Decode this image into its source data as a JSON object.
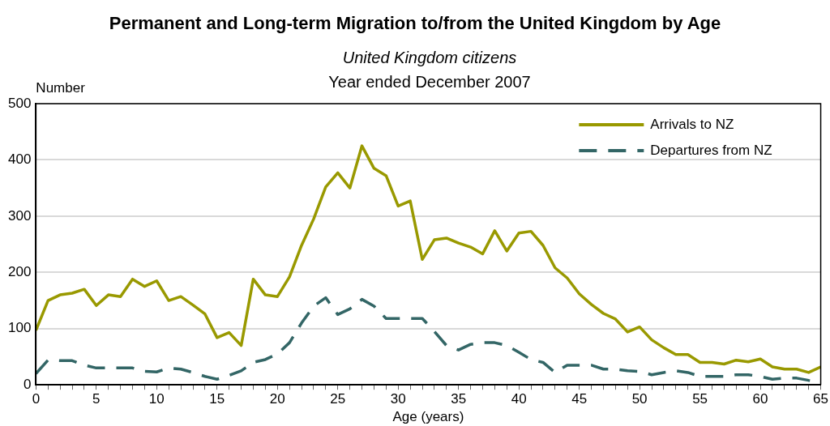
{
  "chart_data": {
    "type": "line",
    "title": "Permanent and Long-term Migration to/from the United Kingdom by Age",
    "subtitle": "United Kingdom citizens",
    "annotations": [
      "Year ended December 2007"
    ],
    "xlabel": "Age (years)",
    "ylabel": "Number",
    "x": [
      0,
      1,
      2,
      3,
      4,
      5,
      6,
      7,
      8,
      9,
      10,
      11,
      12,
      13,
      14,
      15,
      16,
      17,
      18,
      19,
      20,
      21,
      22,
      23,
      24,
      25,
      26,
      27,
      28,
      29,
      30,
      31,
      32,
      33,
      34,
      35,
      36,
      37,
      38,
      39,
      40,
      41,
      42,
      43,
      44,
      45,
      46,
      47,
      48,
      49,
      50,
      51,
      52,
      53,
      54,
      55,
      56,
      57,
      58,
      59,
      60,
      61,
      62,
      63,
      64,
      65
    ],
    "series": [
      {
        "name": "Arrivals to NZ",
        "color": "#999900",
        "line_style": "solid",
        "values": [
          97,
          150,
          160,
          163,
          170,
          141,
          160,
          157,
          188,
          175,
          185,
          150,
          157,
          142,
          126,
          84,
          93,
          70,
          188,
          160,
          157,
          192,
          248,
          295,
          352,
          377,
          350,
          425,
          385,
          372,
          318,
          327,
          223,
          258,
          261,
          252,
          245,
          233,
          274,
          238,
          270,
          273,
          248,
          208,
          190,
          162,
          143,
          127,
          117,
          94,
          103,
          80,
          66,
          54,
          54,
          40,
          40,
          37,
          44,
          41,
          46,
          32,
          28,
          28,
          22,
          32
        ]
      },
      {
        "name": "Departures from NZ",
        "color": "#336666",
        "line_style": "dashed",
        "values": [
          20,
          44,
          43,
          43,
          35,
          30,
          30,
          30,
          30,
          24,
          23,
          30,
          28,
          22,
          15,
          10,
          17,
          25,
          40,
          45,
          55,
          75,
          110,
          140,
          155,
          125,
          135,
          152,
          140,
          118,
          118,
          118,
          118,
          95,
          70,
          62,
          72,
          75,
          75,
          70,
          58,
          45,
          40,
          22,
          35,
          35,
          35,
          28,
          28,
          25,
          24,
          18,
          22,
          25,
          22,
          15,
          15,
          15,
          18,
          18,
          15,
          10,
          12,
          12,
          8,
          5
        ]
      }
    ],
    "xlim": [
      0,
      65
    ],
    "xticks": [
      0,
      {
        "value": 1,
        "label": null
      },
      {
        "value": 2,
        "label": null
      },
      {
        "value": 3,
        "label": null
      },
      {
        "value": 4,
        "label": null
      },
      5,
      {
        "value": 6,
        "label": null
      },
      {
        "value": 7,
        "label": null
      },
      {
        "value": 8,
        "label": null
      },
      {
        "value": 9,
        "label": null
      },
      10,
      {
        "value": 11,
        "label": null
      },
      {
        "value": 12,
        "label": null
      },
      {
        "value": 13,
        "label": null
      },
      {
        "value": 14,
        "label": null
      },
      15,
      {
        "value": 16,
        "label": null
      },
      {
        "value": 17,
        "label": null
      },
      {
        "value": 18,
        "label": null
      },
      {
        "value": 19,
        "label": null
      },
      20,
      {
        "value": 21,
        "label": null
      },
      {
        "value": 22,
        "label": null
      },
      {
        "value": 23,
        "label": null
      },
      {
        "value": 24,
        "label": null
      },
      25,
      {
        "value": 26,
        "label": null
      },
      {
        "value": 27,
        "label": null
      },
      {
        "value": 28,
        "label": null
      },
      {
        "value": 29,
        "label": null
      },
      30,
      {
        "value": 31,
        "label": null
      },
      {
        "value": 32,
        "label": null
      },
      {
        "value": 33,
        "label": null
      },
      {
        "value": 34,
        "label": null
      },
      35,
      {
        "value": 36,
        "label": null
      },
      {
        "value": 37,
        "label": null
      },
      {
        "value": 38,
        "label": null
      },
      {
        "value": 39,
        "label": null
      },
      40,
      {
        "value": 41,
        "label": null
      },
      {
        "value": 42,
        "label": null
      },
      {
        "value": 43,
        "label": null
      },
      {
        "value": 44,
        "label": null
      },
      45,
      {
        "value": 46,
        "label": null
      },
      {
        "value": 47,
        "label": null
      },
      {
        "value": 48,
        "label": null
      },
      {
        "value": 49,
        "label": null
      },
      50,
      {
        "value": 51,
        "label": null
      },
      {
        "value": 52,
        "label": null
      },
      {
        "value": 53,
        "label": null
      },
      {
        "value": 54,
        "label": null
      },
      55,
      {
        "value": 56,
        "label": null
      },
      {
        "value": 57,
        "label": null
      },
      {
        "value": 58,
        "label": null
      },
      {
        "value": 59,
        "label": null
      },
      60,
      {
        "value": 61,
        "label": null
      },
      {
        "value": 62,
        "label": null
      },
      {
        "value": 63,
        "label": null
      },
      {
        "value": 64,
        "label": null
      },
      65
    ],
    "ylim": [
      0,
      500
    ],
    "yticks": [
      0,
      100,
      200,
      300,
      400,
      500
    ],
    "grid": "y",
    "legend": "top right",
    "marker": "none"
  }
}
